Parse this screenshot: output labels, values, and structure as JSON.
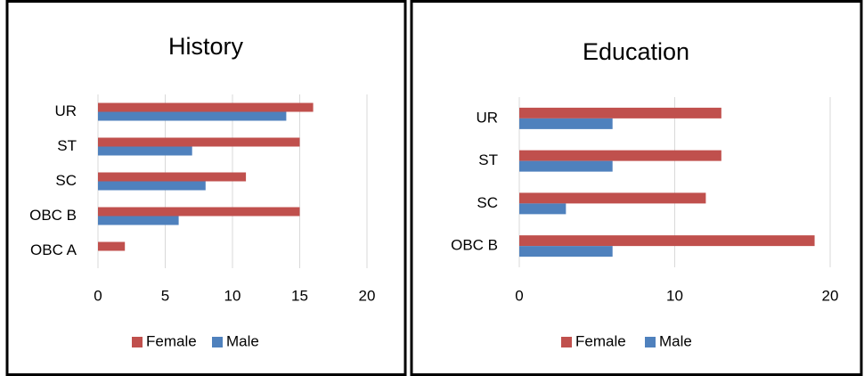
{
  "chart_data": [
    {
      "type": "bar",
      "orientation": "horizontal",
      "title": "History",
      "categories": [
        "UR",
        "ST",
        "SC",
        "OBC B",
        "OBC A"
      ],
      "series": [
        {
          "name": "Female",
          "color": "#c0504d",
          "values": [
            16,
            15,
            11,
            15,
            2
          ]
        },
        {
          "name": "Male",
          "color": "#4f81bd",
          "values": [
            14,
            7,
            8,
            6,
            0
          ]
        }
      ],
      "xlim": [
        0,
        20
      ],
      "xticks": [
        0,
        5,
        10,
        15,
        20
      ],
      "grid": true,
      "legend": "bottom"
    },
    {
      "type": "bar",
      "orientation": "horizontal",
      "title": "Education",
      "categories": [
        "UR",
        "ST",
        "SC",
        "OBC B"
      ],
      "series": [
        {
          "name": "Female",
          "color": "#c0504d",
          "values": [
            13,
            13,
            12,
            19
          ]
        },
        {
          "name": "Male",
          "color": "#4f81bd",
          "values": [
            6,
            6,
            3,
            6
          ]
        }
      ],
      "xlim": [
        0,
        20
      ],
      "xticks": [
        0,
        10,
        20
      ],
      "grid": true,
      "legend": "bottom"
    }
  ]
}
